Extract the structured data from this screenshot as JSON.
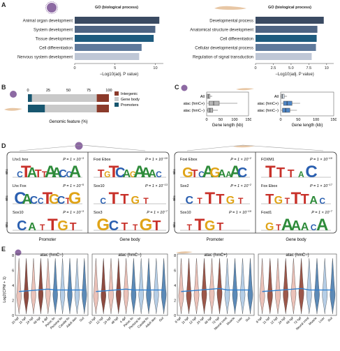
{
  "panels": {
    "A": "A",
    "B": "B",
    "C": "C",
    "D": "D",
    "E": "E"
  },
  "A": {
    "left": {
      "title": "GO (biological process)",
      "xlabel": "−Log10(adj. P value)",
      "ticks": [
        "0",
        "5",
        "10"
      ],
      "terms": [
        {
          "label": "Animal organ development",
          "value": 10.5,
          "color": "#3a4a62"
        },
        {
          "label": "System development",
          "value": 10.0,
          "color": "#4e6483"
        },
        {
          "label": "Tissue development",
          "value": 9.8,
          "color": "#1e5b7e"
        },
        {
          "label": "Cell differentiation",
          "value": 8.3,
          "color": "#5f7a9c"
        },
        {
          "label": "Nervous system development",
          "value": 8.0,
          "color": "#bfc7d6"
        }
      ]
    },
    "right": {
      "title": "GO (biological process)",
      "xlabel": "−Log10(adj. P value)",
      "ticks": [
        "0",
        "2.5",
        "5.0",
        "7.5",
        "10"
      ],
      "terms": [
        {
          "label": "Developmental process",
          "value": 9.6,
          "color": "#3a4a62"
        },
        {
          "label": "Anatomical structure development",
          "value": 8.7,
          "color": "#4e6483"
        },
        {
          "label": "Cell differentiation",
          "value": 8.6,
          "color": "#1e5b7e"
        },
        {
          "label": "Cellular developmental process",
          "value": 8.5,
          "color": "#5f7a9c"
        },
        {
          "label": "Regulation of signal transduction",
          "value": 7.9,
          "color": "#bfc7d6"
        }
      ]
    }
  },
  "B": {
    "xlabel": "Genomic feature (%)",
    "ticks": [
      "0",
      "25",
      "50",
      "75",
      "100"
    ],
    "legend": [
      {
        "label": "Intergenic",
        "color": "#8b3a2a"
      },
      {
        "label": "Gene body",
        "color": "#c9c9c9"
      },
      {
        "label": "Promoters",
        "color": "#17566f"
      }
    ],
    "rows": [
      {
        "promoters": 5,
        "genebody": 80,
        "intergenic": 15
      },
      {
        "promoters": 21,
        "genebody": 64,
        "intergenic": 15
      }
    ]
  },
  "C": {
    "xlabel": "Gene length (kb)",
    "left": {
      "ticks": [
        "0",
        "50",
        "100",
        "150"
      ],
      "rows": [
        {
          "label": "All",
          "color": "#d0d0d0"
        },
        {
          "label": "atac (hmC+)",
          "color": "#b5b5b5"
        },
        {
          "label": "atac (hmC−)",
          "color": "#b5b5b5"
        }
      ]
    },
    "right": {
      "ticks": [
        "0",
        "50",
        "100",
        "150"
      ],
      "rows": [
        {
          "label": "All",
          "color": "#dfe8f3"
        },
        {
          "label": "atac (hmC+)",
          "color": "#4f86c6"
        },
        {
          "label": "atac (hmC−)",
          "color": "#4f86c6"
        }
      ]
    }
  },
  "D": {
    "ylabel": "Bits",
    "groups": [
      {
        "caption": "Promoter",
        "motifs": [
          {
            "name": "Lhx1 box",
            "p": "P = 1 × 10",
            "exp": "−3",
            "seq": "CTATTAACCA"
          },
          {
            "name": "Lhx Fox",
            "p": "P = 1 × 10",
            "exp": "−5",
            "seq": "CACCTGCTG"
          },
          {
            "name": "Sox10",
            "p": "P = 1 × 10",
            "exp": "−3",
            "seq": "CATTGT"
          }
        ]
      },
      {
        "caption": "Gene body",
        "motifs": [
          {
            "name": "Foxi Ebox",
            "p": "P = 1 × 10",
            "exp": "−10",
            "seq": "TGTCAGAAAC"
          },
          {
            "name": "Sox10",
            "p": "P = 1 × 10",
            "exp": "−13",
            "seq": "CTTGT"
          },
          {
            "name": "Sox3",
            "p": "P = 1 × 10",
            "exp": "−7",
            "seq": "GCTTGT"
          }
        ]
      },
      {
        "caption": "Promoter",
        "motifs": [
          {
            "name": "Foxi Ebox",
            "p": "P = 1 × 10",
            "exp": "−2",
            "seq": "GTCAGAAAC"
          },
          {
            "name": "Sox2",
            "p": "P = 1 × 10",
            "exp": "−2",
            "seq": "CTTTGT"
          },
          {
            "name": "Sox10",
            "p": "P = 1 × 10",
            "exp": "−10",
            "seq": "TTGT"
          }
        ]
      },
      {
        "caption": "Gene body",
        "motifs": [
          {
            "name": "FOXM1",
            "p": "P = 1 × 10",
            "exp": "−10",
            "seq": "TTTAC"
          },
          {
            "name": "Fox Ebox",
            "p": "P = 1 × 10",
            "exp": "−17",
            "seq": "TGTTTAC"
          },
          {
            "name": "Foxd1",
            "p": "P = 1 × 10",
            "exp": "−7",
            "seq": "GTAAACA"
          }
        ]
      }
    ]
  },
  "E": {
    "ylabel": "Log2(CPM + 1)",
    "yticks": [
      "8",
      "6",
      "4",
      "2",
      "0"
    ],
    "panels": [
      {
        "title": "atac (hmC−)",
        "labels": [
          "10 hpf",
          "11 hpf",
          "24 hpf",
          "48 hpf",
          "4 dpf",
          "Pelvic fin",
          "Pectoral fin",
          "Caudal fin",
          "Adult skin",
          "Gut"
        ],
        "split": 5
      },
      {
        "title": "atac (hmC−)",
        "labels": [
          "10 hpf",
          "12 hpf",
          "24 hpf",
          "48 hpf",
          "4 dpf",
          "Pelvic fin",
          "Pectoral fin",
          "Caudal fin",
          "Adult skin",
          "Gut"
        ],
        "split": 5
      },
      {
        "title": "atac (hmC+)",
        "labels": [
          "8 hpf",
          "11 hpf",
          "12 hpf",
          "24 hpf",
          "48 hpf",
          "72 hpf",
          "Neural crest",
          "Muscle",
          "Liver",
          "Gut"
        ],
        "split": 6
      },
      {
        "title": "atac (hmC−)",
        "labels": [
          "8 hpf",
          "11 hpf",
          "12 hpf",
          "24 hpf",
          "48 hpf",
          "72 hpf",
          "Neural crest",
          "Muscle",
          "Liver",
          "Gut"
        ],
        "split": 6
      }
    ]
  }
}
